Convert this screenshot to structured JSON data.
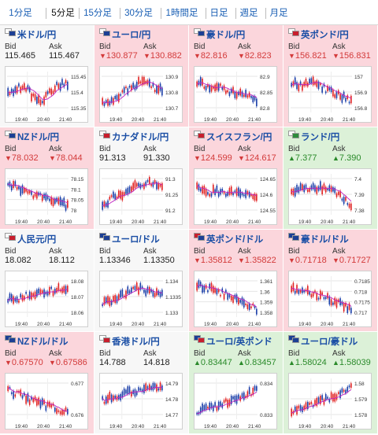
{
  "tabs": [
    {
      "label": "1分足",
      "active": false
    },
    {
      "label": "5分足",
      "active": true
    },
    {
      "label": "15分足",
      "active": false
    },
    {
      "label": "30分足",
      "active": false
    },
    {
      "label": "1時間足",
      "active": false
    },
    {
      "label": "日足",
      "active": false
    },
    {
      "label": "週足",
      "active": false
    },
    {
      "label": "月足",
      "active": false
    }
  ],
  "quote_labels": {
    "bid": "Bid",
    "ask": "Ask"
  },
  "colors": {
    "down_bg": "#fbd6dc",
    "up_bg": "#dcf1d8",
    "flat_bg": "#f7f7f7",
    "up": "#2a8a2a",
    "down": "#d33a3a",
    "candle_up": "#e02020",
    "candle_down": "#1a3ea8",
    "ma": "#c020c0"
  },
  "cards": [
    {
      "pair": "米ドル/円",
      "direction": "flat",
      "bid": "115.465",
      "ask": "115.467",
      "flag": [
        "#ffffff",
        "#1c3f94"
      ],
      "chart": {
        "ticks": [
          "115.45",
          "115.4",
          "115.35"
        ],
        "times": [
          "19:40",
          "20:40",
          "21:40"
        ],
        "trend": [
          0.55,
          0.35,
          0.45,
          0.8,
          0.6,
          0.3,
          0.25
        ]
      }
    },
    {
      "pair": "ユーロ/円",
      "direction": "down",
      "bid": "130.877",
      "ask": "130.882",
      "flag": [
        "#ffffff",
        "#1c3f94"
      ],
      "chart": {
        "ticks": [
          "130.9",
          "130.8",
          "130.7"
        ],
        "times": [
          "19:40",
          "20:40",
          "21:40"
        ],
        "trend": [
          0.85,
          0.75,
          0.5,
          0.35,
          0.2,
          0.35,
          0.45
        ]
      }
    },
    {
      "pair": "豪ドル/円",
      "direction": "down",
      "bid": "82.816",
      "ask": "82.823",
      "flag": [
        "#ffffff",
        "#1c3f94"
      ],
      "chart": {
        "ticks": [
          "82.9",
          "82.85",
          "82.8"
        ],
        "times": [
          "19:40",
          "20:40",
          "21:40"
        ],
        "trend": [
          0.2,
          0.35,
          0.3,
          0.45,
          0.55,
          0.6,
          0.8
        ]
      }
    },
    {
      "pair": "英ポンド/円",
      "direction": "down",
      "bid": "156.821",
      "ask": "156.831",
      "flag": [
        "#ffffff",
        "#c81e2d"
      ],
      "chart": {
        "ticks": [
          "157",
          "156.9",
          "156.8"
        ],
        "times": [
          "19:40",
          "20:40",
          "21:40"
        ],
        "trend": [
          0.25,
          0.3,
          0.25,
          0.35,
          0.5,
          0.6,
          0.75
        ]
      }
    },
    {
      "pair": "NZドル/円",
      "direction": "down",
      "bid": "78.032",
      "ask": "78.044",
      "flag": [
        "#ffffff",
        "#1c3f94"
      ],
      "chart": {
        "ticks": [
          "78.15",
          "78.1",
          "78.05",
          "78"
        ],
        "times": [
          "19:40",
          "20:40",
          "21:40"
        ],
        "trend": [
          0.2,
          0.3,
          0.45,
          0.55,
          0.6,
          0.7,
          0.85
        ]
      }
    },
    {
      "pair": "カナダドル/円",
      "direction": "flat",
      "bid": "91.313",
      "ask": "91.330",
      "flag": [
        "#ffffff",
        "#c81e2d"
      ],
      "chart": {
        "ticks": [
          "91.3",
          "91.25",
          "91.2"
        ],
        "times": [
          "19:40",
          "20:40",
          "21:40"
        ],
        "trend": [
          0.85,
          0.6,
          0.5,
          0.3,
          0.2,
          0.15,
          0.2
        ]
      }
    },
    {
      "pair": "スイスフラン/円",
      "direction": "down",
      "bid": "124.599",
      "ask": "124.617",
      "flag": [
        "#ffffff",
        "#c81e2d"
      ],
      "chart": {
        "ticks": [
          "124.65",
          "124.6",
          "124.55"
        ],
        "times": [
          "19:40",
          "20:40",
          "21:40"
        ],
        "trend": [
          0.3,
          0.45,
          0.4,
          0.45,
          0.5,
          0.5,
          0.55
        ]
      }
    },
    {
      "pair": "ランド/円",
      "direction": "up",
      "bid": "7.377",
      "ask": "7.390",
      "flag": [
        "#ffffff",
        "#2e8b3c"
      ],
      "chart": {
        "ticks": [
          "7.4",
          "7.39",
          "7.38"
        ],
        "times": [
          "19:40",
          "20:40",
          "21:40"
        ],
        "trend": [
          0.5,
          0.35,
          0.3,
          0.3,
          0.35,
          0.6,
          0.85
        ]
      }
    },
    {
      "pair": "人民元/円",
      "direction": "flat",
      "bid": "18.082",
      "ask": "18.112",
      "flag": [
        "#ffffff",
        "#c81e2d"
      ],
      "chart": {
        "ticks": [
          "18.08",
          "18.07",
          "18.06"
        ],
        "times": [
          "19:40",
          "20:40",
          "21:40"
        ],
        "trend": [
          0.55,
          0.6,
          0.45,
          0.4,
          0.35,
          0.3,
          0.3
        ]
      }
    },
    {
      "pair": "ユーロ/ドル",
      "direction": "flat",
      "bid": "1.13346",
      "ask": "1.13350",
      "flag": [
        "#1c3f94",
        "#1c3f94"
      ],
      "chart": {
        "ticks": [
          "1.134",
          "1.1335",
          "1.133"
        ],
        "times": [
          "19:40",
          "20:40",
          "21:40"
        ],
        "trend": [
          0.7,
          0.6,
          0.45,
          0.25,
          0.3,
          0.4,
          0.45
        ]
      }
    },
    {
      "pair": "英ポンド/ドル",
      "direction": "down",
      "bid": "1.35812",
      "ask": "1.35822",
      "flag": [
        "#c81e2d",
        "#1c3f94"
      ],
      "chart": {
        "ticks": [
          "1.361",
          "1.36",
          "1.359",
          "1.358"
        ],
        "times": [
          "19:40",
          "20:40",
          "21:40"
        ],
        "trend": [
          0.2,
          0.25,
          0.35,
          0.45,
          0.55,
          0.7,
          0.85
        ]
      }
    },
    {
      "pair": "豪ドル/ドル",
      "direction": "down",
      "bid": "0.71718",
      "ask": "0.71727",
      "flag": [
        "#1c3f94",
        "#1c3f94"
      ],
      "chart": {
        "ticks": [
          "0.7185",
          "0.718",
          "0.7175",
          "0.717"
        ],
        "times": [
          "19:40",
          "20:40",
          "21:40"
        ],
        "trend": [
          0.3,
          0.3,
          0.4,
          0.5,
          0.6,
          0.7,
          0.85
        ]
      }
    },
    {
      "pair": "NZドル/ドル",
      "direction": "down",
      "bid": "0.67570",
      "ask": "0.67586",
      "flag": [
        "#1c3f94",
        "#1c3f94"
      ],
      "chart": {
        "ticks": [
          "0.677",
          "0.676"
        ],
        "times": [
          "19:40",
          "20:40",
          "21:40"
        ],
        "trend": [
          0.25,
          0.35,
          0.5,
          0.6,
          0.7,
          0.8,
          0.85
        ]
      }
    },
    {
      "pair": "香港ドル/円",
      "direction": "flat",
      "bid": "14.788",
      "ask": "14.818",
      "flag": [
        "#ffffff",
        "#c81e2d"
      ],
      "chart": {
        "ticks": [
          "14.79",
          "14.78",
          "14.77"
        ],
        "times": [
          "19:40",
          "20:40",
          "21:40"
        ],
        "trend": [
          0.55,
          0.45,
          0.35,
          0.3,
          0.25,
          0.2,
          0.2
        ]
      }
    },
    {
      "pair": "ユーロ/英ポンド",
      "direction": "up",
      "bid": "0.83447",
      "ask": "0.83457",
      "flag": [
        "#1c3f94",
        "#c81e2d"
      ],
      "chart": {
        "ticks": [
          "0.834",
          "0.833"
        ],
        "times": [
          "19:40",
          "20:40",
          "21:40"
        ],
        "trend": [
          0.85,
          0.8,
          0.7,
          0.6,
          0.45,
          0.35,
          0.25
        ]
      }
    },
    {
      "pair": "ユーロ/豪ドル",
      "direction": "up",
      "bid": "1.58024",
      "ask": "1.58039",
      "flag": [
        "#1c3f94",
        "#1c3f94"
      ],
      "chart": {
        "ticks": [
          "1.58",
          "1.579",
          "1.578"
        ],
        "times": [
          "19:40",
          "20:40",
          "21:40"
        ],
        "trend": [
          0.85,
          0.75,
          0.65,
          0.55,
          0.45,
          0.35,
          0.2
        ]
      }
    }
  ]
}
